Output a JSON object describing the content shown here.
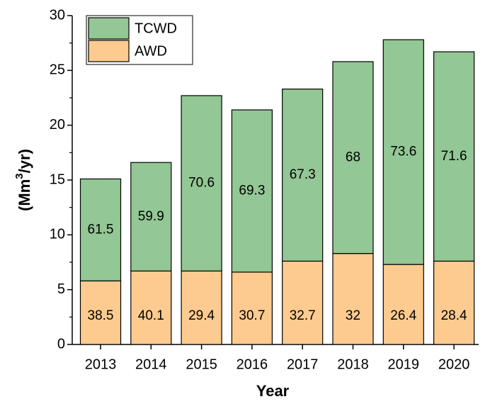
{
  "chart_data": {
    "type": "stacked-bar",
    "x_label": "Year",
    "y_label": [
      "(Mm",
      "3",
      "/yr)"
    ],
    "categories": [
      "2013",
      "2014",
      "2015",
      "2016",
      "2017",
      "2018",
      "2019",
      "2020"
    ],
    "series": [
      {
        "name": "AWD",
        "color": "#fdcb8f",
        "values": [
          5.8,
          6.7,
          6.7,
          6.6,
          7.6,
          8.3,
          7.3,
          7.6
        ],
        "shares": [
          38.5,
          40.1,
          29.4,
          30.7,
          32.7,
          32,
          26.4,
          28.4
        ]
      },
      {
        "name": "TCWD",
        "color": "#93c795",
        "values": [
          9.3,
          9.9,
          16.0,
          14.8,
          15.7,
          17.5,
          20.5,
          19.1
        ],
        "shares": [
          61.5,
          59.9,
          70.6,
          69.3,
          67.3,
          68,
          73.6,
          71.6
        ]
      }
    ],
    "ylim": [
      0,
      30
    ],
    "yticks": [
      0,
      5,
      10,
      15,
      20,
      25,
      30
    ],
    "legend": "upper-left"
  }
}
